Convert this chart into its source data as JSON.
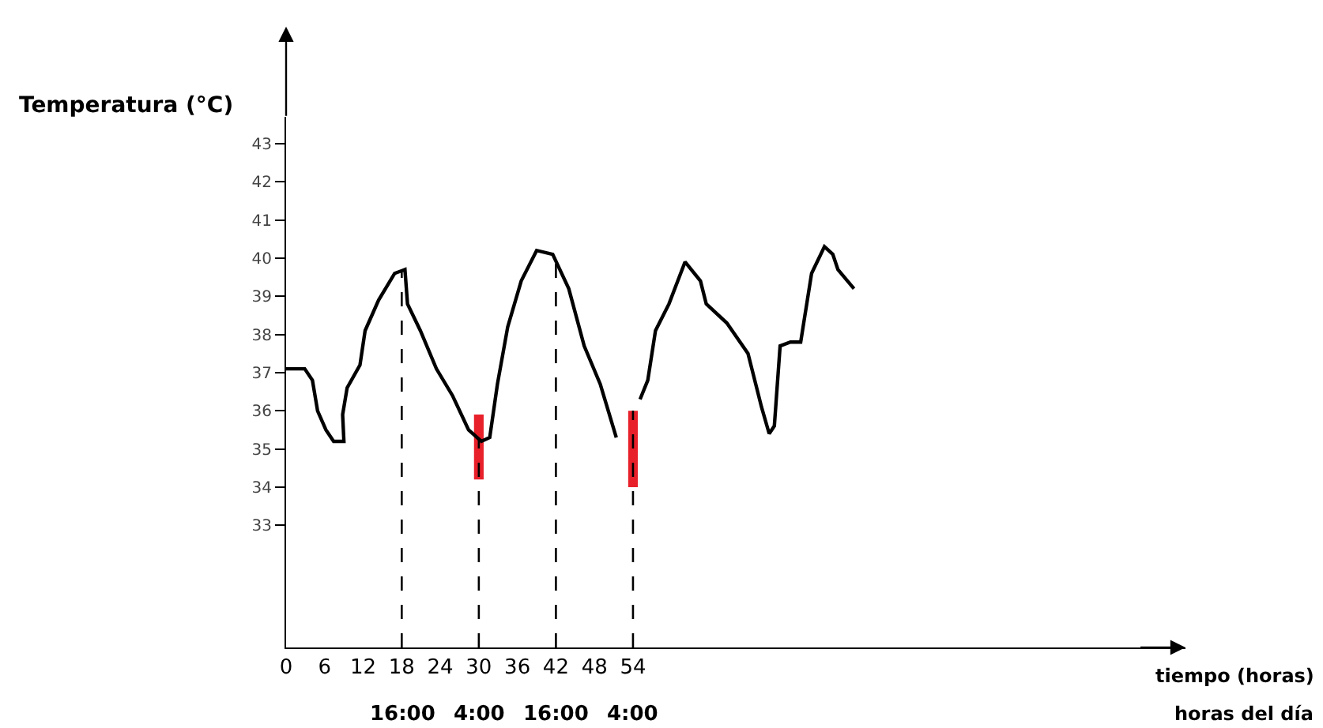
{
  "chart_data": {
    "type": "line",
    "ylabel": "Temperatura (°C)",
    "xlabel": "tiempo (horas)",
    "xlim": [
      0,
      140
    ],
    "ylim": [
      29.8,
      43.7
    ],
    "xticks": [
      0,
      6,
      12,
      18,
      24,
      30,
      36,
      42,
      48,
      54
    ],
    "yticks": [
      33,
      34,
      35,
      36,
      37,
      38,
      39,
      40,
      41,
      42,
      43
    ],
    "annotations": [
      "16:00",
      "4:00",
      "16:00",
      "4:00",
      "horas del día"
    ],
    "series": [
      {
        "color": "#000000",
        "x": [
          0,
          2.9,
          4.1,
          4.9,
          6.2,
          7.4,
          9.0,
          8.8,
          9.5,
          11.5,
          12.3,
          14.4,
          16.9,
          18.5,
          18.9,
          20.9,
          23.4,
          25.9,
          28.4,
          30.4,
          31.7,
          32.9,
          34.5,
          36.6,
          39.0,
          41.5,
          44.0,
          46.4,
          48.9,
          51.4,
          53.2,
          55.1,
          56.3,
          57.5,
          59.6,
          62.1,
          64.5,
          65.4,
          68.6,
          71.9,
          74.0,
          75.2,
          76.0,
          76.9,
          78.5,
          80.1,
          81.8,
          83.8,
          85.1,
          85.9,
          88.4
        ],
        "values": [
          37.1,
          37.1,
          36.8,
          36.0,
          35.5,
          35.2,
          35.2,
          35.9,
          36.6,
          37.2,
          38.1,
          38.9,
          39.6,
          39.7,
          38.8,
          38.1,
          37.1,
          36.4,
          35.5,
          35.2,
          35.3,
          36.7,
          38.2,
          39.4,
          40.2,
          40.1,
          39.2,
          37.7,
          36.7,
          35.3,
          null,
          36.3,
          36.8,
          38.1,
          38.8,
          39.9,
          39.4,
          38.8,
          38.3,
          37.5,
          36.1,
          35.4,
          35.6,
          37.7,
          37.8,
          37.8,
          39.6,
          40.3,
          40.1,
          39.7,
          39.2
        ]
      },
      {
        "type": "bar",
        "color": "#e8202a",
        "x": [
          30,
          54
        ],
        "base": [
          34.2,
          34.0
        ],
        "values": [
          1.7,
          2.0
        ]
      }
    ],
    "ref_lines": [
      {
        "axis": "x",
        "value": 18,
        "line_style": "dashed",
        "color": "#000000"
      },
      {
        "axis": "x",
        "value": 30,
        "line_style": "dashed",
        "color": "#000000"
      },
      {
        "axis": "x",
        "value": 42,
        "line_style": "dashed",
        "color": "#000000"
      },
      {
        "axis": "x",
        "value": 54,
        "line_style": "dashed",
        "color": "#000000"
      }
    ],
    "marker": "none",
    "line_style": "solid"
  }
}
